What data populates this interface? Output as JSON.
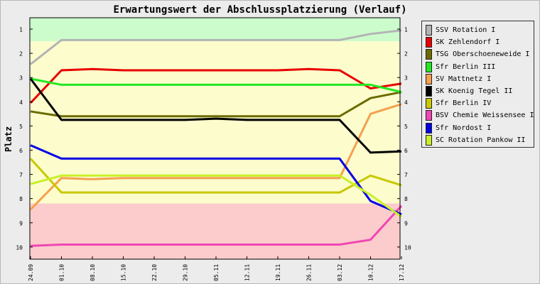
{
  "chart_data": {
    "type": "line",
    "title": "Erwartungswert der Abschlussplatzierung (Verlauf)",
    "ylabel": "Platz",
    "xlabel": "",
    "ylim": [
      1,
      10
    ],
    "y_inverted": true,
    "yticks": [
      1,
      2,
      3,
      4,
      5,
      6,
      7,
      8,
      9,
      10
    ],
    "categories": [
      "24.09",
      "01.10",
      "08.10",
      "15.10",
      "22.10",
      "29.10",
      "05.11",
      "12.11",
      "19.11",
      "26.11",
      "03.12",
      "10.12",
      "17.12"
    ],
    "bands": [
      {
        "from": 0.5,
        "to": 1.5,
        "color": "#ccfccc"
      },
      {
        "from": 1.5,
        "to": 8.2,
        "color": "#fcfccc"
      },
      {
        "from": 8.2,
        "to": 10.5,
        "color": "#fccccc"
      }
    ],
    "legend_position": "right",
    "series": [
      {
        "name": "SSV Rotation I",
        "color": "#b4b4b4",
        "values": [
          2.45,
          1.45,
          1.45,
          1.45,
          1.45,
          1.45,
          1.45,
          1.45,
          1.45,
          1.45,
          1.45,
          1.2,
          1.05
        ]
      },
      {
        "name": "SK Zehlendorf I",
        "color": "#e80000",
        "values": [
          4.05,
          2.7,
          2.65,
          2.7,
          2.7,
          2.7,
          2.7,
          2.7,
          2.7,
          2.65,
          2.7,
          3.45,
          3.25
        ]
      },
      {
        "name": "TSG Oberschoeneweide I",
        "color": "#6b6b00",
        "values": [
          4.4,
          4.6,
          4.6,
          4.6,
          4.6,
          4.6,
          4.6,
          4.6,
          4.6,
          4.6,
          4.6,
          3.85,
          3.6
        ]
      },
      {
        "name": "Sfr Berlin III",
        "color": "#22e822",
        "values": [
          3.05,
          3.3,
          3.3,
          3.3,
          3.3,
          3.3,
          3.3,
          3.3,
          3.3,
          3.3,
          3.3,
          3.3,
          3.6
        ]
      },
      {
        "name": "SV Mattnetz I",
        "color": "#f4a050",
        "values": [
          8.45,
          7.15,
          7.2,
          7.15,
          7.15,
          7.15,
          7.15,
          7.15,
          7.15,
          7.15,
          7.15,
          4.5,
          4.1
        ]
      },
      {
        "name": "SK Koenig Tegel II",
        "color": "#000000",
        "values": [
          3.05,
          4.75,
          4.75,
          4.75,
          4.75,
          4.75,
          4.7,
          4.75,
          4.75,
          4.75,
          4.75,
          6.1,
          6.05
        ]
      },
      {
        "name": "Sfr Berlin IV",
        "color": "#c8c800",
        "values": [
          6.35,
          7.75,
          7.75,
          7.75,
          7.75,
          7.75,
          7.75,
          7.75,
          7.75,
          7.75,
          7.75,
          7.05,
          7.45
        ]
      },
      {
        "name": "BSV Chemie Weissensee I",
        "color": "#f046b4",
        "values": [
          9.95,
          9.9,
          9.9,
          9.9,
          9.9,
          9.9,
          9.9,
          9.9,
          9.9,
          9.9,
          9.9,
          9.7,
          8.3
        ]
      },
      {
        "name": "Sfr Nordost I",
        "color": "#0000e8",
        "values": [
          5.8,
          6.35,
          6.35,
          6.35,
          6.35,
          6.35,
          6.35,
          6.35,
          6.35,
          6.35,
          6.35,
          8.1,
          8.65
        ]
      },
      {
        "name": "SC Rotation Pankow II",
        "color": "#c8f028",
        "values": [
          7.4,
          7.05,
          7.05,
          7.05,
          7.05,
          7.05,
          7.05,
          7.05,
          7.05,
          7.05,
          7.05,
          7.85,
          8.75
        ]
      }
    ]
  }
}
